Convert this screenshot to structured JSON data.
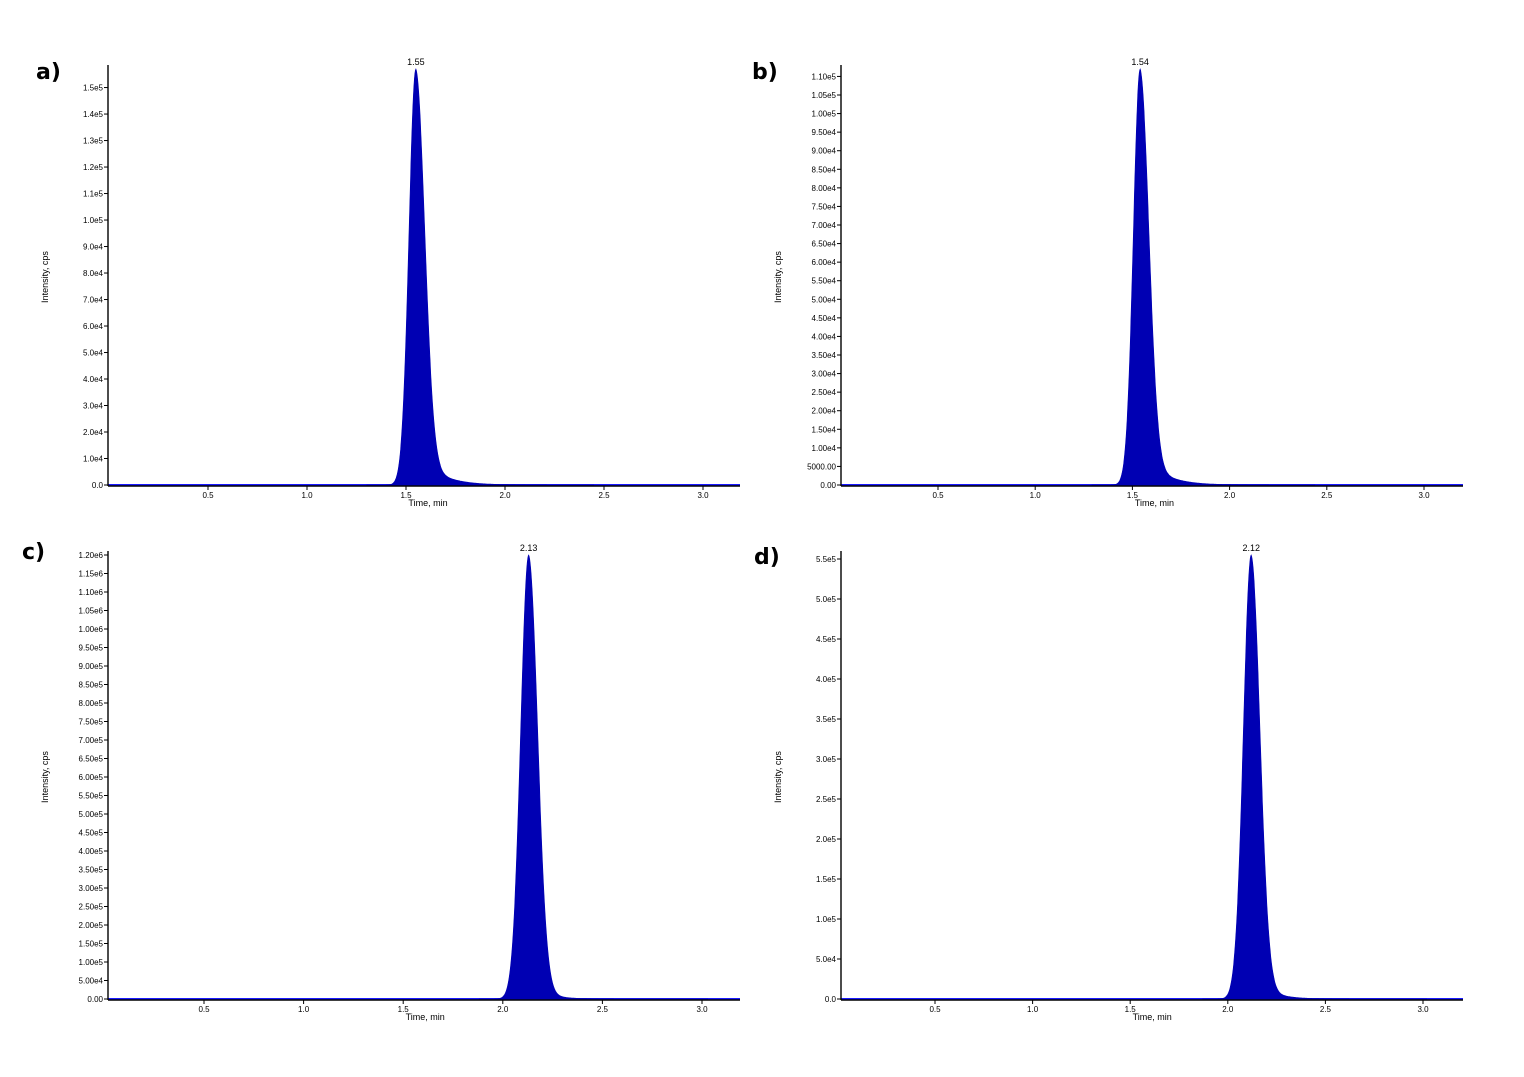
{
  "colors": {
    "peak_fill": "#0000b3",
    "baseline": "#1a1aff",
    "axis": "#000000"
  },
  "chart_data": [
    {
      "panel": "a)",
      "type": "area",
      "xlabel": "Time, min",
      "ylabel": "Intensity, cps",
      "xlim": [
        0.0,
        3.2
      ],
      "ylim": [
        0,
        157000
      ],
      "x_ticks": [
        "0.5",
        "1.0",
        "1.5",
        "2.0",
        "2.5",
        "3.0"
      ],
      "x_tick_values": [
        0.5,
        1.0,
        1.5,
        2.0,
        2.5,
        3.0
      ],
      "y_ticks": [
        "0.0",
        "1.0e4",
        "2.0e4",
        "3.0e4",
        "4.0e4",
        "5.0e4",
        "6.0e4",
        "7.0e4",
        "8.0e4",
        "9.0e4",
        "1.0e5",
        "1.1e5",
        "1.2e5",
        "1.3e5",
        "1.4e5",
        "1.5e5"
      ],
      "y_tick_values": [
        0,
        10000,
        20000,
        30000,
        40000,
        50000,
        60000,
        70000,
        80000,
        90000,
        100000,
        110000,
        120000,
        130000,
        140000,
        150000
      ],
      "peak_label": "1.55",
      "peak_rt": 1.55,
      "peak_height": 157000,
      "rise_sigma": 0.035,
      "fall_sigma": 0.045,
      "tail_tau": 0.1,
      "tail_amp": 0.09
    },
    {
      "panel": "b)",
      "type": "area",
      "xlabel": "Time, min",
      "ylabel": "Intensity, cps",
      "xlim": [
        0.0,
        3.2
      ],
      "ylim": [
        0,
        112000
      ],
      "x_ticks": [
        "0.5",
        "1.0",
        "1.5",
        "2.0",
        "2.5",
        "3.0"
      ],
      "x_tick_values": [
        0.5,
        1.0,
        1.5,
        2.0,
        2.5,
        3.0
      ],
      "y_ticks": [
        "0.00",
        "5000.00",
        "1.00e4",
        "1.50e4",
        "2.00e4",
        "2.50e4",
        "3.00e4",
        "3.50e4",
        "4.00e4",
        "4.50e4",
        "5.00e4",
        "5.50e4",
        "6.00e4",
        "6.50e4",
        "7.00e4",
        "7.50e4",
        "8.00e4",
        "8.50e4",
        "9.00e4",
        "9.50e4",
        "1.00e5",
        "1.05e5",
        "1.10e5"
      ],
      "y_tick_values": [
        0,
        5000,
        10000,
        15000,
        20000,
        25000,
        30000,
        35000,
        40000,
        45000,
        50000,
        55000,
        60000,
        65000,
        70000,
        75000,
        80000,
        85000,
        90000,
        95000,
        100000,
        105000,
        110000
      ],
      "peak_label": "1.54",
      "peak_rt": 1.54,
      "peak_height": 112000,
      "rise_sigma": 0.035,
      "fall_sigma": 0.045,
      "tail_tau": 0.1,
      "tail_amp": 0.09
    },
    {
      "panel": "c)",
      "type": "area",
      "xlabel": "Time, min",
      "ylabel": "Intensity, cps",
      "xlim": [
        0.0,
        3.2
      ],
      "ylim": [
        0,
        1200000
      ],
      "x_ticks": [
        "0.5",
        "1.0",
        "1.5",
        "2.0",
        "2.5",
        "3.0"
      ],
      "x_tick_values": [
        0.5,
        1.0,
        1.5,
        2.0,
        2.5,
        3.0
      ],
      "y_ticks": [
        "0.00",
        "5.00e4",
        "1.00e5",
        "1.50e5",
        "2.00e5",
        "2.50e5",
        "3.00e5",
        "3.50e5",
        "4.00e5",
        "4.50e5",
        "5.00e5",
        "5.50e5",
        "6.00e5",
        "6.50e5",
        "7.00e5",
        "7.50e5",
        "8.00e5",
        "8.50e5",
        "9.00e5",
        "9.50e5",
        "1.00e6",
        "1.05e6",
        "1.10e6",
        "1.15e6",
        "1.20e6"
      ],
      "y_tick_values": [
        0,
        50000,
        100000,
        150000,
        200000,
        250000,
        300000,
        350000,
        400000,
        450000,
        500000,
        550000,
        600000,
        650000,
        700000,
        750000,
        800000,
        850000,
        900000,
        950000,
        1000000,
        1050000,
        1100000,
        1150000,
        1200000
      ],
      "peak_label": "2.13",
      "peak_rt": 2.13,
      "peak_height": 1200000,
      "rise_sigma": 0.04,
      "fall_sigma": 0.045,
      "tail_tau": 0.07,
      "tail_amp": 0.05
    },
    {
      "panel": "d)",
      "type": "area",
      "xlabel": "Time, min",
      "ylabel": "Intensity, cps",
      "xlim": [
        0.0,
        3.2
      ],
      "ylim": [
        0,
        555000
      ],
      "x_ticks": [
        "0.5",
        "1.0",
        "1.5",
        "2.0",
        "2.5",
        "3.0"
      ],
      "x_tick_values": [
        0.5,
        1.0,
        1.5,
        2.0,
        2.5,
        3.0
      ],
      "y_ticks": [
        "0.0",
        "5.0e4",
        "1.0e5",
        "1.5e5",
        "2.0e5",
        "2.5e5",
        "3.0e5",
        "3.5e5",
        "4.0e5",
        "4.5e5",
        "5.0e5",
        "5.5e5"
      ],
      "y_tick_values": [
        0,
        50000,
        100000,
        150000,
        200000,
        250000,
        300000,
        350000,
        400000,
        450000,
        500000,
        550000
      ],
      "peak_label": "2.12",
      "peak_rt": 2.12,
      "peak_height": 555000,
      "rise_sigma": 0.04,
      "fall_sigma": 0.045,
      "tail_tau": 0.08,
      "tail_amp": 0.06
    }
  ]
}
